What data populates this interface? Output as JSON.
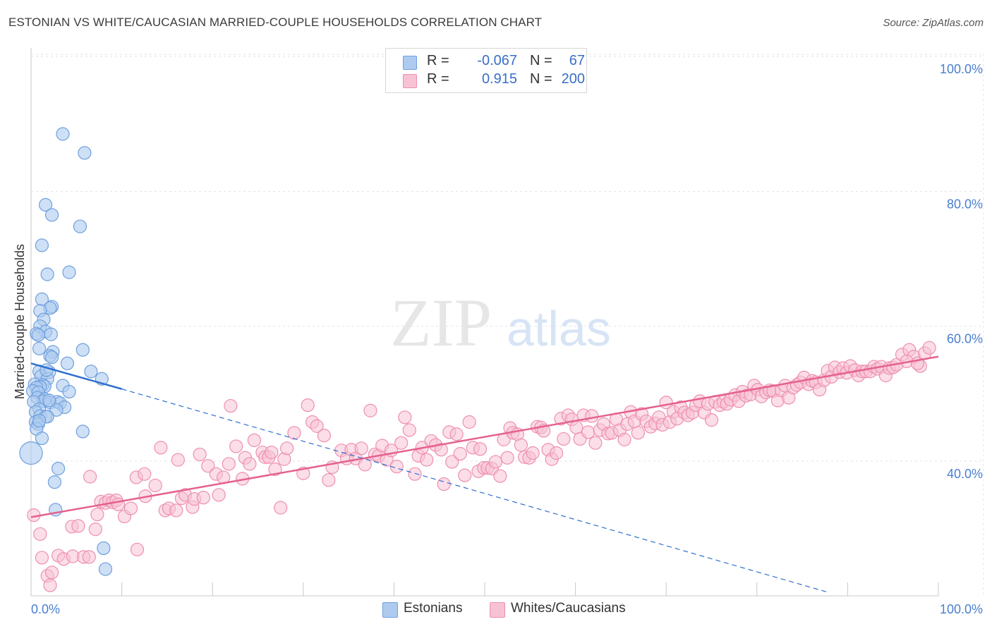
{
  "title": "ESTONIAN VS WHITE/CAUCASIAN MARRIED-COUPLE HOUSEHOLDS CORRELATION CHART",
  "source": "Source: ZipAtlas.com",
  "watermark": {
    "zip": "ZIP",
    "atlas": "atlas"
  },
  "legend_top": {
    "rows": [
      {
        "r_label": "R =",
        "r_value": "-0.067",
        "n_label": "N =",
        "n_value": "67"
      },
      {
        "r_label": "R =",
        "r_value": "0.915",
        "n_label": "N =",
        "n_value": "200"
      }
    ]
  },
  "legend_bottom": [
    {
      "label": "Estonians"
    },
    {
      "label": "Whites/Caucasians"
    }
  ],
  "colors": {
    "blue_fill": "#aecbef",
    "blue_stroke": "#6f9fdf",
    "blue_line": "#2f6fcf",
    "pink_fill": "#f7c3d4",
    "pink_stroke": "#ee8fb0",
    "pink_line": "#e5618e",
    "grid": "#dfe3ea",
    "axis_text": "#4a7fd0"
  },
  "chart_data": {
    "type": "scatter",
    "title": "ESTONIAN VS WHITE/CAUCASIAN MARRIED-COUPLE HOUSEHOLDS CORRELATION CHART",
    "xlabel": "",
    "ylabel": "Married-couple Households",
    "xlim": [
      0,
      100
    ],
    "ylim": [
      20,
      102
    ],
    "x_tick_labels": [
      "0.0%",
      "100.0%"
    ],
    "y_ticks": [
      40,
      60,
      80,
      100
    ],
    "y_tick_labels": [
      "40.0%",
      "60.0%",
      "80.0%",
      "100.0%"
    ],
    "grid": true,
    "series": [
      {
        "name": "Estonians",
        "r": -0.067,
        "n": 67,
        "trend_solid": {
          "x": [
            0,
            10
          ],
          "y": [
            54.5,
            50.7
          ]
        },
        "trend_dashed": {
          "x": [
            10,
            88
          ],
          "y": [
            50.7,
            20.5
          ]
        },
        "points": [
          [
            3.5,
            88.5
          ],
          [
            5.9,
            85.7
          ],
          [
            1.6,
            78.0
          ],
          [
            2.3,
            76.5
          ],
          [
            5.4,
            74.8
          ],
          [
            1.2,
            72.0
          ],
          [
            4.2,
            68.0
          ],
          [
            1.8,
            67.7
          ],
          [
            1.2,
            64.0
          ],
          [
            2.3,
            62.9
          ],
          [
            2.1,
            62.7
          ],
          [
            1.0,
            62.3
          ],
          [
            1.4,
            61.0
          ],
          [
            1.0,
            60.0
          ],
          [
            1.6,
            59.2
          ],
          [
            2.2,
            58.8
          ],
          [
            0.6,
            58.9
          ],
          [
            0.8,
            58.7
          ],
          [
            0.9,
            56.7
          ],
          [
            2.4,
            56.2
          ],
          [
            5.7,
            56.5
          ],
          [
            2.1,
            55.6
          ],
          [
            2.3,
            55.4
          ],
          [
            4.0,
            54.5
          ],
          [
            0.9,
            53.3
          ],
          [
            2.0,
            53.2
          ],
          [
            6.6,
            53.3
          ],
          [
            1.1,
            52.6
          ],
          [
            1.8,
            52.2
          ],
          [
            7.8,
            52.2
          ],
          [
            0.4,
            51.4
          ],
          [
            1.3,
            51.3
          ],
          [
            1.5,
            51.1
          ],
          [
            1.0,
            51.0
          ],
          [
            0.6,
            50.9
          ],
          [
            3.5,
            51.2
          ],
          [
            0.2,
            50.4
          ],
          [
            0.8,
            50.2
          ],
          [
            4.2,
            50.3
          ],
          [
            0.7,
            49.4
          ],
          [
            1.5,
            49.2
          ],
          [
            1.4,
            48.9
          ],
          [
            2.1,
            48.7
          ],
          [
            2.9,
            48.8
          ],
          [
            3.2,
            48.6
          ],
          [
            0.3,
            48.8
          ],
          [
            3.7,
            48.0
          ],
          [
            0.9,
            47.7
          ],
          [
            2.8,
            47.6
          ],
          [
            0.5,
            47.3
          ],
          [
            1.0,
            46.7
          ],
          [
            1.6,
            46.6
          ],
          [
            1.8,
            46.6
          ],
          [
            0.5,
            45.8
          ],
          [
            0.8,
            45.5
          ],
          [
            0.6,
            44.8
          ],
          [
            5.7,
            44.4
          ],
          [
            1.2,
            43.4
          ],
          [
            0.0,
            41.2
          ],
          [
            3.0,
            38.9
          ],
          [
            2.6,
            36.9
          ],
          [
            2.7,
            32.8
          ],
          [
            8.0,
            27.1
          ],
          [
            8.2,
            24.0
          ],
          [
            0.9,
            46.0
          ],
          [
            2.0,
            49.0
          ],
          [
            1.7,
            53.5
          ]
        ]
      },
      {
        "name": "Whites/Caucasians",
        "r": 0.915,
        "n": 200,
        "trend": {
          "x": [
            0,
            100
          ],
          "y": [
            31.7,
            55.5
          ]
        },
        "points": [
          [
            0.3,
            32.0
          ],
          [
            1.0,
            29.2
          ],
          [
            1.2,
            25.7
          ],
          [
            1.8,
            23.0
          ],
          [
            2.1,
            21.6
          ],
          [
            2.3,
            23.5
          ],
          [
            3.0,
            26.0
          ],
          [
            3.6,
            25.5
          ],
          [
            4.5,
            30.3
          ],
          [
            4.6,
            25.9
          ],
          [
            5.2,
            30.4
          ],
          [
            5.8,
            25.8
          ],
          [
            6.4,
            25.8
          ],
          [
            6.5,
            37.7
          ],
          [
            7.1,
            29.9
          ],
          [
            7.3,
            32.1
          ],
          [
            7.7,
            34.0
          ],
          [
            8.2,
            33.8
          ],
          [
            8.6,
            34.2
          ],
          [
            9.0,
            33.9
          ],
          [
            9.4,
            34.2
          ],
          [
            9.6,
            33.6
          ],
          [
            10.3,
            31.8
          ],
          [
            11.0,
            33.0
          ],
          [
            11.6,
            37.6
          ],
          [
            11.7,
            26.9
          ],
          [
            12.5,
            38.1
          ],
          [
            12.6,
            34.8
          ],
          [
            13.7,
            36.4
          ],
          [
            14.3,
            42.0
          ],
          [
            14.8,
            32.7
          ],
          [
            15.2,
            33.0
          ],
          [
            16.0,
            32.7
          ],
          [
            16.2,
            40.2
          ],
          [
            16.6,
            34.5
          ],
          [
            17.0,
            35.0
          ],
          [
            17.8,
            33.2
          ],
          [
            18.0,
            34.4
          ],
          [
            18.6,
            41.0
          ],
          [
            19.0,
            34.6
          ],
          [
            19.5,
            39.3
          ],
          [
            20.4,
            38.1
          ],
          [
            20.7,
            35.0
          ],
          [
            21.2,
            37.6
          ],
          [
            21.8,
            39.6
          ],
          [
            22.0,
            48.2
          ],
          [
            22.6,
            42.2
          ],
          [
            23.3,
            37.4
          ],
          [
            23.6,
            40.5
          ],
          [
            24.1,
            39.6
          ],
          [
            24.6,
            43.1
          ],
          [
            25.5,
            41.3
          ],
          [
            25.8,
            40.6
          ],
          [
            26.2,
            40.6
          ],
          [
            26.5,
            41.3
          ],
          [
            26.9,
            38.8
          ],
          [
            27.5,
            33.1
          ],
          [
            27.9,
            40.3
          ],
          [
            28.2,
            41.9
          ],
          [
            29.0,
            44.2
          ],
          [
            30.0,
            38.2
          ],
          [
            30.5,
            48.3
          ],
          [
            31.0,
            45.8
          ],
          [
            31.5,
            45.2
          ],
          [
            32.3,
            43.8
          ],
          [
            32.8,
            37.2
          ],
          [
            33.2,
            39.1
          ],
          [
            34.2,
            41.6
          ],
          [
            34.8,
            40.4
          ],
          [
            35.3,
            41.7
          ],
          [
            35.8,
            40.4
          ],
          [
            36.4,
            41.9
          ],
          [
            36.8,
            39.5
          ],
          [
            37.4,
            47.5
          ],
          [
            37.9,
            41.0
          ],
          [
            38.3,
            40.8
          ],
          [
            38.7,
            42.3
          ],
          [
            39.2,
            40.2
          ],
          [
            39.7,
            41.6
          ],
          [
            40.3,
            39.2
          ],
          [
            40.8,
            42.7
          ],
          [
            41.2,
            46.5
          ],
          [
            41.7,
            44.6
          ],
          [
            42.3,
            38.1
          ],
          [
            42.7,
            40.8
          ],
          [
            43.1,
            42.0
          ],
          [
            43.6,
            40.2
          ],
          [
            44.1,
            43.0
          ],
          [
            44.6,
            42.4
          ],
          [
            45.2,
            41.7
          ],
          [
            45.5,
            36.6
          ],
          [
            46.1,
            44.3
          ],
          [
            46.4,
            39.9
          ],
          [
            46.9,
            44.0
          ],
          [
            47.3,
            41.1
          ],
          [
            47.8,
            37.9
          ],
          [
            48.3,
            45.8
          ],
          [
            48.7,
            42.0
          ],
          [
            49.3,
            38.5
          ],
          [
            49.5,
            41.8
          ],
          [
            49.9,
            39.0
          ],
          [
            50.3,
            39.0
          ],
          [
            50.8,
            38.9
          ],
          [
            51.2,
            39.9
          ],
          [
            51.7,
            37.8
          ],
          [
            52.1,
            43.2
          ],
          [
            52.5,
            40.5
          ],
          [
            52.8,
            44.9
          ],
          [
            53.1,
            44.2
          ],
          [
            53.6,
            44.0
          ],
          [
            54.0,
            42.4
          ],
          [
            54.4,
            40.6
          ],
          [
            54.9,
            40.5
          ],
          [
            55.3,
            41.2
          ],
          [
            55.8,
            45.1
          ],
          [
            56.2,
            45.0
          ],
          [
            56.5,
            44.5
          ],
          [
            57.0,
            41.7
          ],
          [
            57.4,
            40.3
          ],
          [
            57.9,
            41.2
          ],
          [
            58.4,
            46.3
          ],
          [
            58.7,
            43.3
          ],
          [
            59.2,
            46.8
          ],
          [
            59.6,
            46.2
          ],
          [
            60.1,
            45.0
          ],
          [
            60.5,
            43.3
          ],
          [
            60.9,
            46.8
          ],
          [
            61.4,
            44.3
          ],
          [
            61.8,
            46.7
          ],
          [
            62.2,
            42.7
          ],
          [
            62.7,
            44.6
          ],
          [
            63.1,
            45.5
          ],
          [
            63.6,
            44.1
          ],
          [
            64.0,
            44.2
          ],
          [
            64.5,
            46.2
          ],
          [
            64.9,
            44.6
          ],
          [
            65.4,
            43.2
          ],
          [
            65.7,
            45.5
          ],
          [
            66.1,
            47.3
          ],
          [
            66.5,
            45.9
          ],
          [
            66.9,
            44.2
          ],
          [
            67.3,
            47.0
          ],
          [
            67.8,
            45.9
          ],
          [
            68.3,
            45.1
          ],
          [
            68.8,
            45.6
          ],
          [
            69.2,
            46.5
          ],
          [
            69.6,
            45.4
          ],
          [
            70.0,
            48.7
          ],
          [
            70.4,
            45.8
          ],
          [
            70.8,
            47.3
          ],
          [
            71.2,
            46.3
          ],
          [
            71.6,
            48.0
          ],
          [
            72.0,
            47.2
          ],
          [
            72.4,
            46.8
          ],
          [
            72.9,
            47.2
          ],
          [
            73.3,
            48.3
          ],
          [
            73.7,
            48.9
          ],
          [
            74.2,
            47.2
          ],
          [
            74.6,
            48.5
          ],
          [
            75.0,
            46.1
          ],
          [
            75.4,
            48.8
          ],
          [
            75.9,
            48.3
          ],
          [
            76.3,
            48.8
          ],
          [
            76.7,
            48.5
          ],
          [
            77.1,
            49.1
          ],
          [
            77.6,
            49.8
          ],
          [
            78.0,
            48.9
          ],
          [
            78.4,
            50.3
          ],
          [
            78.8,
            49.7
          ],
          [
            79.3,
            49.9
          ],
          [
            79.7,
            51.2
          ],
          [
            80.1,
            50.6
          ],
          [
            80.5,
            49.6
          ],
          [
            81.0,
            50.2
          ],
          [
            81.4,
            50.5
          ],
          [
            81.8,
            50.4
          ],
          [
            82.3,
            49.0
          ],
          [
            82.7,
            50.5
          ],
          [
            83.1,
            51.2
          ],
          [
            83.5,
            49.4
          ],
          [
            84.0,
            50.9
          ],
          [
            84.4,
            51.3
          ],
          [
            84.8,
            51.7
          ],
          [
            85.2,
            52.4
          ],
          [
            85.7,
            51.4
          ],
          [
            86.1,
            51.9
          ],
          [
            86.5,
            51.7
          ],
          [
            86.9,
            50.6
          ],
          [
            87.4,
            52.0
          ],
          [
            87.8,
            53.4
          ],
          [
            88.2,
            52.5
          ],
          [
            88.6,
            53.9
          ],
          [
            89.1,
            53.2
          ],
          [
            89.5,
            53.8
          ],
          [
            89.9,
            53.1
          ],
          [
            90.3,
            54.1
          ],
          [
            90.8,
            53.5
          ],
          [
            91.2,
            52.7
          ],
          [
            91.6,
            53.3
          ],
          [
            92.0,
            53.3
          ],
          [
            92.5,
            53.3
          ],
          [
            92.9,
            54.0
          ],
          [
            93.3,
            53.7
          ],
          [
            93.7,
            54.0
          ],
          [
            94.2,
            52.7
          ],
          [
            94.6,
            53.8
          ],
          [
            95.0,
            53.9
          ],
          [
            95.4,
            54.3
          ],
          [
            96.0,
            55.8
          ],
          [
            96.8,
            56.5
          ],
          [
            97.3,
            55.5
          ],
          [
            98.0,
            54.1
          ],
          [
            98.5,
            56.0
          ],
          [
            99.0,
            56.8
          ],
          [
            96.5,
            54.8
          ],
          [
            97.7,
            54.5
          ]
        ]
      }
    ]
  }
}
